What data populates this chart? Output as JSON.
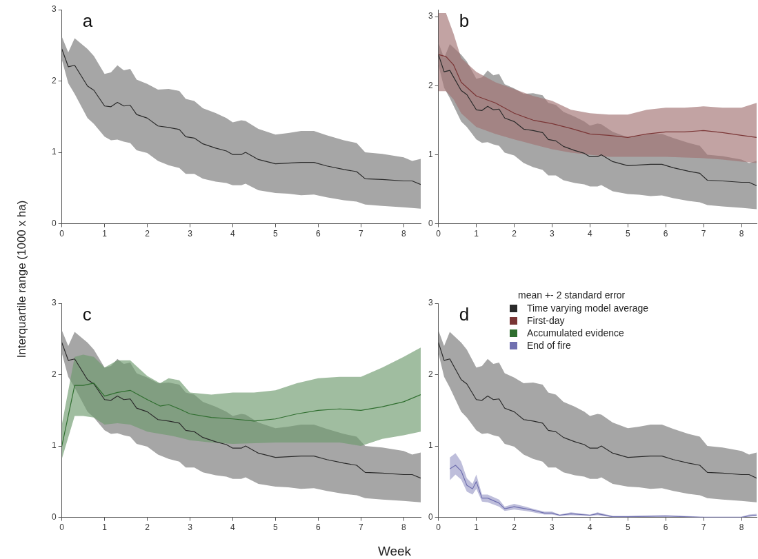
{
  "chart_data": [
    {
      "type": "line",
      "title": "a",
      "ylabel": "Interquartile range (1000 x ha)",
      "xlim": [
        0,
        8.4
      ],
      "ylim": [
        0,
        3
      ],
      "xticks": [
        0,
        1,
        2,
        3,
        4,
        5,
        6,
        7,
        8
      ],
      "yticks": [
        0,
        1,
        2,
        3
      ],
      "grid": false,
      "legend": false,
      "series": [
        {
          "color": "#2a2a2a",
          "x": [
            0,
            0.15,
            0.3,
            0.6,
            0.75,
            1,
            1.15,
            1.3,
            1.45,
            1.6,
            1.75,
            2,
            2.25,
            2.5,
            2.75,
            2.9,
            3.1,
            3.3,
            3.6,
            3.85,
            4,
            4.2,
            4.3,
            4.6,
            5,
            5.3,
            5.6,
            5.9,
            6.2,
            6.6,
            6.9,
            7.1,
            7.5,
            8,
            8.2,
            8.4
          ],
          "values": [
            2.45,
            2.2,
            2.22,
            1.93,
            1.87,
            1.65,
            1.64,
            1.7,
            1.65,
            1.66,
            1.53,
            1.48,
            1.37,
            1.35,
            1.32,
            1.22,
            1.2,
            1.12,
            1.06,
            1.02,
            0.97,
            0.97,
            1,
            0.9,
            0.84,
            0.85,
            0.86,
            0.86,
            0.81,
            0.76,
            0.73,
            0.63,
            0.62,
            0.6,
            0.6,
            0.55
          ],
          "lower": [
            2.3,
            1.97,
            1.82,
            1.48,
            1.4,
            1.22,
            1.17,
            1.18,
            1.15,
            1.13,
            1.03,
            0.99,
            0.88,
            0.82,
            0.78,
            0.7,
            0.7,
            0.63,
            0.59,
            0.57,
            0.54,
            0.54,
            0.56,
            0.47,
            0.43,
            0.42,
            0.4,
            0.41,
            0.37,
            0.33,
            0.31,
            0.27,
            0.25,
            0.23,
            0.22,
            0.21
          ],
          "upper": [
            2.62,
            2.4,
            2.6,
            2.45,
            2.35,
            2.1,
            2.12,
            2.22,
            2.15,
            2.17,
            2.02,
            1.96,
            1.88,
            1.89,
            1.86,
            1.75,
            1.72,
            1.62,
            1.55,
            1.48,
            1.42,
            1.45,
            1.44,
            1.33,
            1.25,
            1.27,
            1.3,
            1.3,
            1.24,
            1.17,
            1.13,
            1,
            0.98,
            0.93,
            0.88,
            0.91
          ]
        }
      ]
    },
    {
      "type": "line",
      "title": "b",
      "xlim": [
        0,
        8.4
      ],
      "ylim": [
        0,
        3.1
      ],
      "xticks": [
        0,
        1,
        2,
        3,
        4,
        5,
        6,
        7,
        8
      ],
      "yticks": [
        0,
        1,
        2,
        3
      ],
      "grid": false,
      "legend": false,
      "series": [
        {
          "color": "#2a2a2a",
          "x": [
            0,
            0.15,
            0.3,
            0.6,
            0.75,
            1,
            1.15,
            1.3,
            1.45,
            1.6,
            1.75,
            2,
            2.25,
            2.5,
            2.75,
            2.9,
            3.1,
            3.3,
            3.6,
            3.85,
            4,
            4.2,
            4.3,
            4.6,
            5,
            5.3,
            5.6,
            5.9,
            6.2,
            6.6,
            6.9,
            7.1,
            7.5,
            8,
            8.2,
            8.4
          ],
          "values": [
            2.45,
            2.2,
            2.22,
            1.93,
            1.87,
            1.65,
            1.64,
            1.7,
            1.65,
            1.66,
            1.53,
            1.48,
            1.37,
            1.35,
            1.32,
            1.22,
            1.2,
            1.12,
            1.06,
            1.02,
            0.97,
            0.97,
            1,
            0.9,
            0.84,
            0.85,
            0.86,
            0.86,
            0.81,
            0.76,
            0.73,
            0.63,
            0.62,
            0.6,
            0.6,
            0.55
          ],
          "lower": [
            2.3,
            1.97,
            1.82,
            1.48,
            1.4,
            1.22,
            1.17,
            1.18,
            1.15,
            1.13,
            1.03,
            0.99,
            0.88,
            0.82,
            0.78,
            0.7,
            0.7,
            0.63,
            0.59,
            0.57,
            0.54,
            0.54,
            0.56,
            0.47,
            0.43,
            0.42,
            0.4,
            0.41,
            0.37,
            0.33,
            0.31,
            0.27,
            0.25,
            0.23,
            0.22,
            0.21
          ],
          "upper": [
            2.62,
            2.4,
            2.6,
            2.45,
            2.35,
            2.1,
            2.12,
            2.22,
            2.15,
            2.17,
            2.02,
            1.96,
            1.88,
            1.89,
            1.86,
            1.75,
            1.72,
            1.62,
            1.55,
            1.48,
            1.42,
            1.45,
            1.44,
            1.33,
            1.25,
            1.27,
            1.3,
            1.3,
            1.24,
            1.17,
            1.13,
            1,
            0.98,
            0.93,
            0.88,
            0.91
          ]
        },
        {
          "name": "First-day",
          "color": "#7a3535",
          "x": [
            0,
            0.2,
            0.4,
            0.6,
            1,
            1.5,
            2,
            2.5,
            3,
            3.5,
            4,
            4.5,
            5,
            5.5,
            6,
            6.5,
            7,
            7.5,
            8,
            8.4
          ],
          "values": [
            2.45,
            2.42,
            2.3,
            2.05,
            1.85,
            1.75,
            1.6,
            1.5,
            1.45,
            1.38,
            1.3,
            1.28,
            1.25,
            1.3,
            1.33,
            1.33,
            1.35,
            1.32,
            1.28,
            1.25
          ],
          "lower": [
            1.92,
            1.92,
            1.8,
            1.6,
            1.4,
            1.3,
            1.22,
            1.15,
            1.08,
            1.03,
            1,
            0.97,
            0.97,
            0.97,
            0.97,
            0.96,
            0.95,
            0.93,
            0.9,
            0.88
          ],
          "upper": [
            3.05,
            3.05,
            2.75,
            2.4,
            2.2,
            2.05,
            1.95,
            1.85,
            1.78,
            1.65,
            1.6,
            1.58,
            1.58,
            1.65,
            1.68,
            1.68,
            1.7,
            1.68,
            1.68,
            1.75
          ]
        }
      ]
    },
    {
      "type": "line",
      "title": "c",
      "xlabel": "Week",
      "xlim": [
        0,
        8.4
      ],
      "ylim": [
        0,
        3
      ],
      "xticks": [
        0,
        1,
        2,
        3,
        4,
        5,
        6,
        7,
        8
      ],
      "yticks": [
        0,
        1,
        2,
        3
      ],
      "grid": false,
      "legend": false,
      "series": [
        {
          "color": "#2a2a2a",
          "x": [
            0,
            0.15,
            0.3,
            0.6,
            0.75,
            1,
            1.15,
            1.3,
            1.45,
            1.6,
            1.75,
            2,
            2.25,
            2.5,
            2.75,
            2.9,
            3.1,
            3.3,
            3.6,
            3.85,
            4,
            4.2,
            4.3,
            4.6,
            5,
            5.3,
            5.6,
            5.9,
            6.2,
            6.6,
            6.9,
            7.1,
            7.5,
            8,
            8.2,
            8.4
          ],
          "values": [
            2.45,
            2.2,
            2.22,
            1.93,
            1.87,
            1.65,
            1.64,
            1.7,
            1.65,
            1.66,
            1.53,
            1.48,
            1.37,
            1.35,
            1.32,
            1.22,
            1.2,
            1.12,
            1.06,
            1.02,
            0.97,
            0.97,
            1,
            0.9,
            0.84,
            0.85,
            0.86,
            0.86,
            0.81,
            0.76,
            0.73,
            0.63,
            0.62,
            0.6,
            0.6,
            0.55
          ],
          "lower": [
            2.3,
            1.97,
            1.82,
            1.48,
            1.4,
            1.22,
            1.17,
            1.18,
            1.15,
            1.13,
            1.03,
            0.99,
            0.88,
            0.82,
            0.78,
            0.7,
            0.7,
            0.63,
            0.59,
            0.57,
            0.54,
            0.54,
            0.56,
            0.47,
            0.43,
            0.42,
            0.4,
            0.41,
            0.37,
            0.33,
            0.31,
            0.27,
            0.25,
            0.23,
            0.22,
            0.21
          ],
          "upper": [
            2.62,
            2.4,
            2.6,
            2.45,
            2.35,
            2.1,
            2.12,
            2.22,
            2.15,
            2.17,
            2.02,
            1.96,
            1.88,
            1.89,
            1.86,
            1.75,
            1.72,
            1.62,
            1.55,
            1.48,
            1.42,
            1.45,
            1.44,
            1.33,
            1.25,
            1.27,
            1.3,
            1.3,
            1.24,
            1.17,
            1.13,
            1,
            0.98,
            0.93,
            0.88,
            0.91
          ]
        },
        {
          "name": "Accumulated evidence",
          "color": "#2f6e2f",
          "x": [
            0,
            0.3,
            0.5,
            0.75,
            1,
            1.3,
            1.6,
            2,
            2.3,
            2.5,
            2.75,
            3,
            3.5,
            4,
            4.5,
            5,
            5.5,
            6,
            6.5,
            7,
            7.5,
            8,
            8.4
          ],
          "values": [
            1,
            1.85,
            1.85,
            1.88,
            1.7,
            1.75,
            1.78,
            1.65,
            1.56,
            1.58,
            1.52,
            1.45,
            1.4,
            1.38,
            1.35,
            1.38,
            1.45,
            1.5,
            1.52,
            1.5,
            1.55,
            1.62,
            1.72
          ],
          "lower": [
            0.82,
            1.42,
            1.42,
            1.4,
            1.3,
            1.32,
            1.3,
            1.2,
            1.17,
            1.15,
            1.12,
            1.08,
            1.05,
            1.03,
            1.04,
            1.05,
            1.05,
            1.05,
            1.05,
            1,
            1.1,
            1.15,
            1.2
          ],
          "upper": [
            1.3,
            2.25,
            2.28,
            2.25,
            2.1,
            2.2,
            2.2,
            1.98,
            1.88,
            1.95,
            1.92,
            1.75,
            1.72,
            1.75,
            1.75,
            1.78,
            1.88,
            1.95,
            1.97,
            1.97,
            2.1,
            2.25,
            2.38
          ]
        }
      ]
    },
    {
      "type": "line",
      "title": "d",
      "legend_title": "mean +- 2 standard error",
      "xlim": [
        0,
        8.4
      ],
      "ylim": [
        0,
        3
      ],
      "xticks": [
        0,
        1,
        2,
        3,
        4,
        5,
        6,
        7,
        8
      ],
      "yticks": [
        0,
        1,
        2,
        3
      ],
      "grid": false,
      "legend": "top",
      "series": [
        {
          "name": "Time varying model average",
          "color": "#2a2a2a",
          "x": [
            0,
            0.15,
            0.3,
            0.6,
            0.75,
            1,
            1.15,
            1.3,
            1.45,
            1.6,
            1.75,
            2,
            2.25,
            2.5,
            2.75,
            2.9,
            3.1,
            3.3,
            3.6,
            3.85,
            4,
            4.2,
            4.3,
            4.6,
            5,
            5.3,
            5.6,
            5.9,
            6.2,
            6.6,
            6.9,
            7.1,
            7.5,
            8,
            8.2,
            8.4
          ],
          "values": [
            2.45,
            2.2,
            2.22,
            1.93,
            1.87,
            1.65,
            1.64,
            1.7,
            1.65,
            1.66,
            1.53,
            1.48,
            1.37,
            1.35,
            1.32,
            1.22,
            1.2,
            1.12,
            1.06,
            1.02,
            0.97,
            0.97,
            1,
            0.9,
            0.84,
            0.85,
            0.86,
            0.86,
            0.81,
            0.76,
            0.73,
            0.63,
            0.62,
            0.6,
            0.6,
            0.55
          ],
          "lower": [
            2.3,
            1.97,
            1.82,
            1.48,
            1.4,
            1.22,
            1.17,
            1.18,
            1.15,
            1.13,
            1.03,
            0.99,
            0.88,
            0.82,
            0.78,
            0.7,
            0.7,
            0.63,
            0.59,
            0.57,
            0.54,
            0.54,
            0.56,
            0.47,
            0.43,
            0.42,
            0.4,
            0.41,
            0.37,
            0.33,
            0.31,
            0.27,
            0.25,
            0.23,
            0.22,
            0.21
          ],
          "upper": [
            2.62,
            2.4,
            2.6,
            2.45,
            2.35,
            2.1,
            2.12,
            2.22,
            2.15,
            2.17,
            2.02,
            1.96,
            1.88,
            1.89,
            1.86,
            1.75,
            1.72,
            1.62,
            1.55,
            1.48,
            1.42,
            1.45,
            1.44,
            1.33,
            1.25,
            1.27,
            1.3,
            1.3,
            1.24,
            1.17,
            1.13,
            1,
            0.98,
            0.93,
            0.88,
            0.91
          ]
        },
        {
          "name": "End of fire",
          "color": "#7070b0",
          "x": [
            0.3,
            0.45,
            0.6,
            0.75,
            0.9,
            1,
            1.15,
            1.3,
            1.6,
            1.75,
            2,
            2.3,
            2.5,
            2.8,
            3,
            3.2,
            3.5,
            4,
            4.2,
            4.6,
            5,
            6,
            7,
            8,
            8.2,
            8.4
          ],
          "values": [
            0.68,
            0.73,
            0.65,
            0.45,
            0.4,
            0.5,
            0.27,
            0.27,
            0.2,
            0.12,
            0.15,
            0.12,
            0.1,
            0.06,
            0.06,
            0.03,
            0.05,
            0.03,
            0.05,
            0.01,
            0.01,
            0.02,
            0,
            0,
            0.02,
            0.03
          ],
          "lower": [
            0.52,
            0.6,
            0.53,
            0.36,
            0.32,
            0.4,
            0.22,
            0.21,
            0.15,
            0.09,
            0.11,
            0.09,
            0.07,
            0.04,
            0.04,
            0.02,
            0.03,
            0.02,
            0.03,
            0,
            0,
            0.01,
            0,
            0,
            0.01,
            0.02
          ],
          "upper": [
            0.84,
            0.9,
            0.78,
            0.55,
            0.47,
            0.6,
            0.32,
            0.32,
            0.25,
            0.15,
            0.19,
            0.15,
            0.12,
            0.08,
            0.08,
            0.04,
            0.07,
            0.04,
            0.07,
            0.02,
            0.02,
            0.03,
            0.01,
            0.01,
            0.04,
            0.05
          ]
        }
      ]
    }
  ]
}
